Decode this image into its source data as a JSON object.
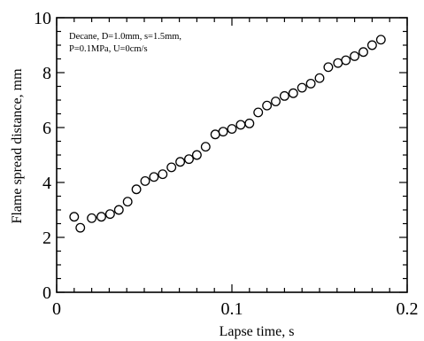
{
  "chart_data": {
    "type": "scatter",
    "title": "",
    "xlabel": "Lapse time, s",
    "ylabel": "Flame spread distance, mm",
    "xlim": [
      0,
      0.2
    ],
    "ylim": [
      0,
      10
    ],
    "grid": false,
    "x_ticks": [
      "0",
      "0.1",
      "0.2"
    ],
    "y_ticks": [
      "0",
      "2",
      "4",
      "6",
      "8",
      "10"
    ],
    "annotation_lines": [
      "Decane, D=1.0mm, s=1.5mm,",
      "P=0.1MPa, U=0cm/s"
    ],
    "marker": "open-circle",
    "series": [
      {
        "x": [
          0.01,
          0.0135,
          0.02,
          0.0255,
          0.0305,
          0.0355,
          0.0405,
          0.0455,
          0.0505,
          0.0555,
          0.0605,
          0.0655,
          0.0705,
          0.0755,
          0.08,
          0.085,
          0.0905,
          0.095,
          0.1,
          0.105,
          0.11,
          0.115,
          0.12,
          0.125,
          0.13,
          0.135,
          0.14,
          0.145,
          0.15,
          0.155,
          0.1605,
          0.165,
          0.17,
          0.175,
          0.18,
          0.185
        ],
        "y": [
          2.75,
          2.35,
          2.7,
          2.75,
          2.85,
          3.0,
          3.3,
          3.75,
          4.05,
          4.2,
          4.3,
          4.55,
          4.75,
          4.85,
          5.0,
          5.3,
          5.75,
          5.85,
          5.95,
          6.1,
          6.15,
          6.55,
          6.8,
          6.95,
          7.15,
          7.25,
          7.45,
          7.6,
          7.8,
          8.2,
          8.35,
          8.45,
          8.6,
          8.75,
          9.0,
          9.2
        ]
      }
    ]
  }
}
